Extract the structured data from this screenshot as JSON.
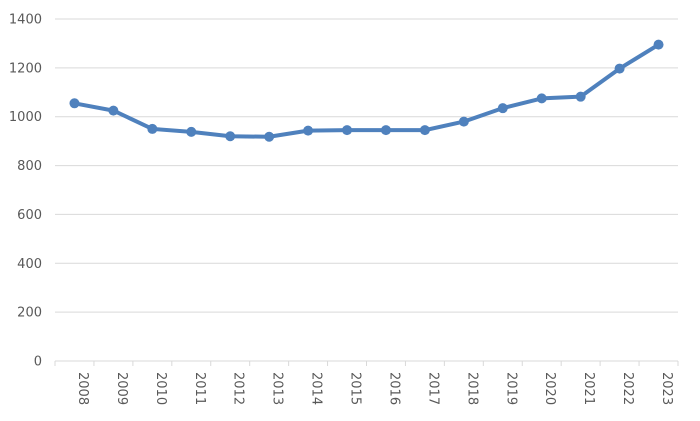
{
  "chart_data": {
    "type": "line",
    "title": "",
    "xlabel": "",
    "ylabel": "",
    "x": [
      "2008",
      "2009",
      "2010",
      "2011",
      "2012",
      "2013",
      "2014",
      "2015",
      "2016",
      "2017",
      "2018",
      "2019",
      "2020",
      "2021",
      "2022",
      "2023"
    ],
    "series": [
      {
        "values": [
          1055,
          1025,
          950,
          938,
          920,
          918,
          943,
          945,
          945,
          945,
          980,
          1035,
          1075,
          1082,
          1197,
          1295
        ],
        "color": "#4f81bd"
      }
    ],
    "ylim": [
      0,
      1400
    ],
    "yticks": [
      0,
      200,
      400,
      600,
      800,
      1000,
      1200,
      1400
    ],
    "grid": true,
    "legend": "none"
  }
}
